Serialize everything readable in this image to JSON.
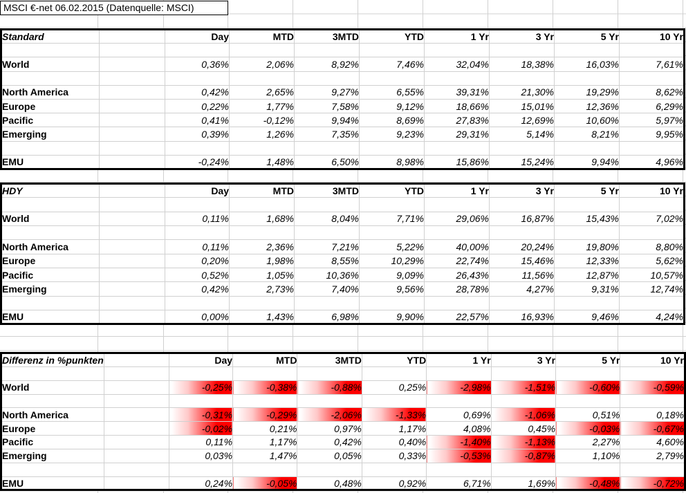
{
  "title": "MSCI €-net 06.02.2015 (Datenquelle: MSCI)",
  "columns": [
    "Day",
    "MTD",
    "3MTD",
    "YTD",
    "1 Yr",
    "3 Yr",
    "5 Yr",
    "10 Yr"
  ],
  "colors": {
    "negative_highlight": "#ff0000",
    "gridline": "#d0d0d0",
    "table_border": "#000000",
    "text": "#000000"
  },
  "tables": [
    {
      "name": "Standard",
      "highlight_negatives": false,
      "rows": [
        {
          "label": "World",
          "values": [
            "0,36%",
            "2,06%",
            "8,92%",
            "7,46%",
            "32,04%",
            "18,38%",
            "16,03%",
            "7,61%"
          ]
        },
        {
          "label": "North America",
          "values": [
            "0,42%",
            "2,65%",
            "9,27%",
            "6,55%",
            "39,31%",
            "21,30%",
            "19,29%",
            "8,62%"
          ]
        },
        {
          "label": "Europe",
          "values": [
            "0,22%",
            "1,77%",
            "7,58%",
            "9,12%",
            "18,66%",
            "15,01%",
            "12,36%",
            "6,29%"
          ]
        },
        {
          "label": "Pacific",
          "values": [
            "0,41%",
            "-0,12%",
            "9,94%",
            "8,69%",
            "27,83%",
            "12,69%",
            "10,60%",
            "5,97%"
          ]
        },
        {
          "label": "Emerging",
          "values": [
            "0,39%",
            "1,26%",
            "7,35%",
            "9,23%",
            "29,31%",
            "5,14%",
            "8,21%",
            "9,95%"
          ]
        },
        {
          "label": "EMU",
          "values": [
            "-0,24%",
            "1,48%",
            "6,50%",
            "8,98%",
            "15,86%",
            "15,24%",
            "9,94%",
            "4,96%"
          ]
        }
      ]
    },
    {
      "name": "HDY",
      "highlight_negatives": false,
      "rows": [
        {
          "label": "World",
          "values": [
            "0,11%",
            "1,68%",
            "8,04%",
            "7,71%",
            "29,06%",
            "16,87%",
            "15,43%",
            "7,02%"
          ]
        },
        {
          "label": "North America",
          "values": [
            "0,11%",
            "2,36%",
            "7,21%",
            "5,22%",
            "40,00%",
            "20,24%",
            "19,80%",
            "8,80%"
          ]
        },
        {
          "label": "Europe",
          "values": [
            "0,20%",
            "1,98%",
            "8,55%",
            "10,29%",
            "22,74%",
            "15,46%",
            "12,33%",
            "5,62%"
          ]
        },
        {
          "label": "Pacific",
          "values": [
            "0,52%",
            "1,05%",
            "10,36%",
            "9,09%",
            "26,43%",
            "11,56%",
            "12,87%",
            "10,57%"
          ]
        },
        {
          "label": "Emerging",
          "values": [
            "0,42%",
            "2,73%",
            "7,40%",
            "9,56%",
            "28,78%",
            "4,27%",
            "9,31%",
            "12,74%"
          ]
        },
        {
          "label": "EMU",
          "values": [
            "0,00%",
            "1,43%",
            "6,98%",
            "9,90%",
            "22,57%",
            "16,93%",
            "9,46%",
            "4,24%"
          ]
        }
      ]
    },
    {
      "name": "Differenz in %punkten",
      "highlight_negatives": true,
      "rows": [
        {
          "label": "World",
          "values": [
            "-0,25%",
            "-0,38%",
            "-0,88%",
            "0,25%",
            "-2,98%",
            "-1,51%",
            "-0,60%",
            "-0,59%"
          ]
        },
        {
          "label": "North America",
          "values": [
            "-0,31%",
            "-0,29%",
            "-2,06%",
            "-1,33%",
            "0,69%",
            "-1,06%",
            "0,51%",
            "0,18%"
          ]
        },
        {
          "label": "Europe",
          "values": [
            "-0,02%",
            "0,21%",
            "0,97%",
            "1,17%",
            "4,08%",
            "0,45%",
            "-0,03%",
            "-0,67%"
          ]
        },
        {
          "label": "Pacific",
          "values": [
            "0,11%",
            "1,17%",
            "0,42%",
            "0,40%",
            "-1,40%",
            "-1,13%",
            "2,27%",
            "4,60%"
          ]
        },
        {
          "label": "Emerging",
          "values": [
            "0,03%",
            "1,47%",
            "0,05%",
            "0,33%",
            "-0,53%",
            "-0,87%",
            "1,10%",
            "2,79%"
          ]
        },
        {
          "label": "EMU",
          "values": [
            "0,24%",
            "-0,05%",
            "0,48%",
            "0,92%",
            "6,71%",
            "1,69%",
            "-0,48%",
            "-0,72%"
          ]
        }
      ]
    }
  ]
}
